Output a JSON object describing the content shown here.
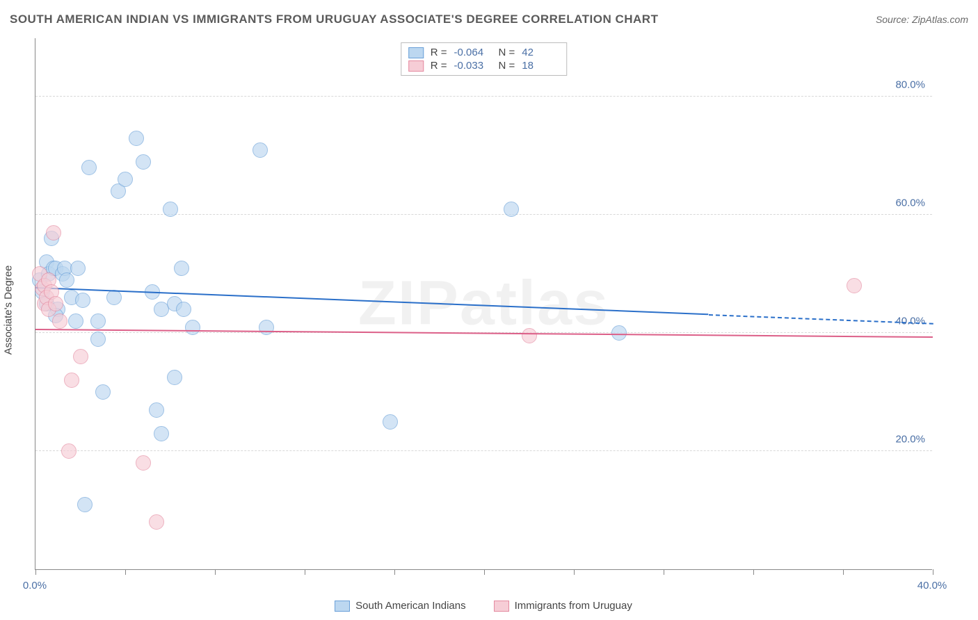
{
  "title": "SOUTH AMERICAN INDIAN VS IMMIGRANTS FROM URUGUAY ASSOCIATE'S DEGREE CORRELATION CHART",
  "source": "Source: ZipAtlas.com",
  "watermark": "ZIPatlas",
  "chart": {
    "type": "scatter",
    "background_color": "#ffffff",
    "grid_color": "#d8d8d8",
    "axis_color": "#888888",
    "tick_label_color": "#4a6fa5",
    "y_axis_label": "Associate's Degree",
    "y_axis_label_fontsize": 15,
    "xlim": [
      0,
      40
    ],
    "ylim": [
      0,
      90
    ],
    "y_ticks": [
      {
        "v": 20,
        "label": "20.0%"
      },
      {
        "v": 40,
        "label": "40.0%"
      },
      {
        "v": 60,
        "label": "60.0%"
      },
      {
        "v": 80,
        "label": "80.0%"
      }
    ],
    "x_tick_values": [
      0,
      4,
      8,
      12,
      16,
      20,
      24,
      28,
      32,
      36,
      40
    ],
    "x_tick_labels": {
      "0": "0.0%",
      "40": "40.0%"
    },
    "marker_radius": 11,
    "marker_stroke_width": 1.2,
    "series": [
      {
        "id": "sai",
        "name": "South American Indians",
        "fill": "#bcd7f0",
        "stroke": "#6aa0d8",
        "fill_opacity": 0.65,
        "R": "-0.064",
        "N": "42",
        "trend": {
          "color": "#2a6fc9",
          "width": 2.5,
          "x1": 0,
          "y1": 47.5,
          "xs": 30,
          "ys": 43.0,
          "x2": 40,
          "y2": 41.5
        },
        "points": [
          {
            "x": 0.2,
            "y": 49
          },
          {
            "x": 0.3,
            "y": 47
          },
          {
            "x": 0.5,
            "y": 52
          },
          {
            "x": 0.5,
            "y": 45
          },
          {
            "x": 0.6,
            "y": 50
          },
          {
            "x": 0.7,
            "y": 56
          },
          {
            "x": 0.8,
            "y": 51
          },
          {
            "x": 0.9,
            "y": 51
          },
          {
            "x": 1.0,
            "y": 44
          },
          {
            "x": 1.2,
            "y": 50
          },
          {
            "x": 1.3,
            "y": 51
          },
          {
            "x": 1.6,
            "y": 46
          },
          {
            "x": 1.8,
            "y": 42
          },
          {
            "x": 1.9,
            "y": 51
          },
          {
            "x": 2.1,
            "y": 45.5
          },
          {
            "x": 2.2,
            "y": 11
          },
          {
            "x": 2.4,
            "y": 68
          },
          {
            "x": 2.8,
            "y": 42
          },
          {
            "x": 2.8,
            "y": 39
          },
          {
            "x": 3.0,
            "y": 30
          },
          {
            "x": 3.5,
            "y": 46
          },
          {
            "x": 3.7,
            "y": 64
          },
          {
            "x": 4.0,
            "y": 66
          },
          {
            "x": 4.5,
            "y": 73
          },
          {
            "x": 4.8,
            "y": 69
          },
          {
            "x": 5.2,
            "y": 47
          },
          {
            "x": 5.4,
            "y": 27
          },
          {
            "x": 5.6,
            "y": 44
          },
          {
            "x": 5.6,
            "y": 23
          },
          {
            "x": 6.0,
            "y": 61
          },
          {
            "x": 6.2,
            "y": 32.5
          },
          {
            "x": 6.2,
            "y": 45
          },
          {
            "x": 6.5,
            "y": 51
          },
          {
            "x": 6.6,
            "y": 44
          },
          {
            "x": 7.0,
            "y": 41
          },
          {
            "x": 10.0,
            "y": 71
          },
          {
            "x": 10.3,
            "y": 41
          },
          {
            "x": 15.8,
            "y": 25
          },
          {
            "x": 21.2,
            "y": 61
          },
          {
            "x": 26.0,
            "y": 40
          },
          {
            "x": 0.9,
            "y": 43
          },
          {
            "x": 1.4,
            "y": 49
          }
        ]
      },
      {
        "id": "uru",
        "name": "Immigrants from Uruguay",
        "fill": "#f6cdd6",
        "stroke": "#e48aa0",
        "fill_opacity": 0.65,
        "R": "-0.033",
        "N": "18",
        "trend": {
          "color": "#dc5f88",
          "width": 2.5,
          "x1": 0,
          "y1": 40.5,
          "xs": 40,
          "ys": 39.2,
          "x2": 40,
          "y2": 39.2
        },
        "points": [
          {
            "x": 0.2,
            "y": 50
          },
          {
            "x": 0.3,
            "y": 47.5
          },
          {
            "x": 0.4,
            "y": 48
          },
          {
            "x": 0.4,
            "y": 45
          },
          {
            "x": 0.5,
            "y": 46
          },
          {
            "x": 0.6,
            "y": 49
          },
          {
            "x": 0.6,
            "y": 44
          },
          {
            "x": 0.7,
            "y": 47
          },
          {
            "x": 0.8,
            "y": 57
          },
          {
            "x": 0.9,
            "y": 45
          },
          {
            "x": 1.1,
            "y": 42
          },
          {
            "x": 1.5,
            "y": 20
          },
          {
            "x": 1.6,
            "y": 32
          },
          {
            "x": 2.0,
            "y": 36
          },
          {
            "x": 4.8,
            "y": 18
          },
          {
            "x": 5.4,
            "y": 8
          },
          {
            "x": 22.0,
            "y": 39.5
          },
          {
            "x": 36.5,
            "y": 48
          }
        ]
      }
    ]
  },
  "stats_box": {
    "labels": {
      "R": "R =",
      "N": "N ="
    }
  },
  "legend": {
    "swatch_w": 22,
    "swatch_h": 16
  }
}
